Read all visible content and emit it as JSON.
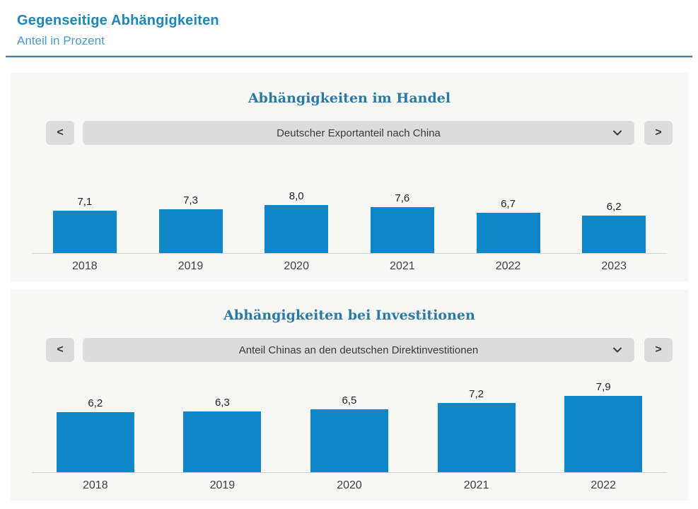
{
  "page": {
    "title": "Gegenseitige Abhängigkeiten",
    "subtitle": "Anteil in Prozent"
  },
  "panels": [
    {
      "title": "Abhängigkeiten im Handel",
      "prev_label": "<",
      "next_label": ">",
      "dropdown_value": "Deutscher Exportanteil nach China"
    },
    {
      "title": "Abhängigkeiten bei Investitionen",
      "prev_label": "<",
      "next_label": ">",
      "dropdown_value": "Anteil Chinas an den deutschen Direktinvestitionen"
    }
  ],
  "chart_data": [
    {
      "type": "bar",
      "title": "Abhängigkeiten im Handel",
      "series_label": "Deutscher Exportanteil nach China",
      "categories": [
        "2018",
        "2019",
        "2020",
        "2021",
        "2022",
        "2023"
      ],
      "values": [
        7.1,
        7.3,
        8.0,
        7.6,
        6.7,
        6.2
      ],
      "value_labels": [
        "7,1",
        "7,3",
        "8,0",
        "7,6",
        "6,7",
        "6,2"
      ],
      "unit": "Prozent",
      "ylim": [
        0,
        8.0
      ],
      "grid": false,
      "legend": false,
      "bar_color": "#0e86c8"
    },
    {
      "type": "bar",
      "title": "Abhängigkeiten bei Investitionen",
      "series_label": "Anteil Chinas an den deutschen Direktinvestitionen",
      "categories": [
        "2018",
        "2019",
        "2020",
        "2021",
        "2022"
      ],
      "values": [
        6.2,
        6.3,
        6.5,
        7.2,
        7.9
      ],
      "value_labels": [
        "6,2",
        "6,3",
        "6,5",
        "7,2",
        "7,9"
      ],
      "unit": "Prozent",
      "ylim": [
        0,
        7.9
      ],
      "grid": false,
      "legend": false,
      "bar_color": "#0e86c8"
    }
  ],
  "colors": {
    "bar_blue": "#0e86c8",
    "title_blue": "#1e86b8",
    "subtitle_blue": "#4a9cc0",
    "panel_title_blue": "#2a7ba3",
    "panel_bg": "#f7f7f6",
    "control_gray": "#dcdcdc",
    "rule_dark": "#4f7e95"
  }
}
